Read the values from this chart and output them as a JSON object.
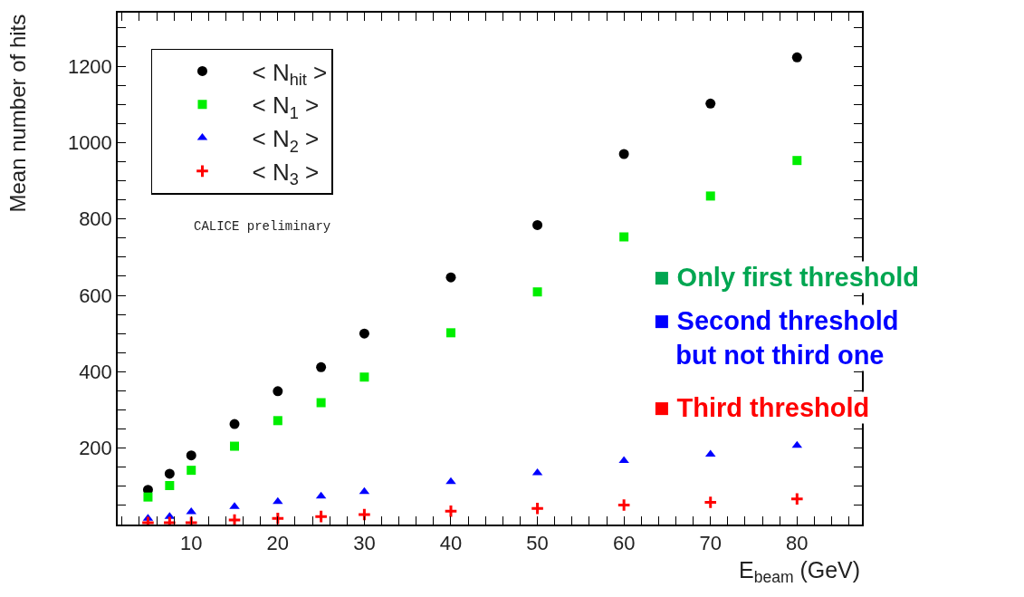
{
  "chart_data": {
    "type": "scatter",
    "xlabel": "E$_{beam}$ (GeV)",
    "ylabel": "Mean number of hits",
    "x": [
      5,
      7.5,
      10,
      15,
      20,
      25,
      30,
      40,
      50,
      60,
      70,
      80
    ],
    "series": [
      {
        "name": "< N$_{hit}$ >",
        "color": "#000000",
        "marker": "circle",
        "values": [
          91,
          133,
          181,
          263,
          349,
          412,
          500,
          647,
          784,
          970,
          1102,
          1223
        ]
      },
      {
        "name": "< N$_{1}$ >",
        "color": "#00ee00",
        "marker": "square",
        "values": [
          72,
          102,
          142,
          205,
          272,
          319,
          386,
          502,
          609,
          753,
          860,
          953
        ]
      },
      {
        "name": "< N$_{2}$ >",
        "color": "#0000ff",
        "marker": "triangle",
        "values": [
          16,
          21,
          33,
          47,
          60,
          74,
          86,
          112,
          135,
          167,
          184,
          207
        ]
      },
      {
        "name": "< N$_{3}$ >",
        "color": "#ff0000",
        "marker": "cross",
        "values": [
          5,
          5,
          5,
          12,
          16,
          21,
          26,
          35,
          42,
          51,
          58,
          67
        ]
      }
    ],
    "annotations": [
      "CALICE preliminary",
      "■ Only first threshold",
      "■ Second threshold\nbut not third one",
      "■ Third threshold"
    ],
    "xlim": [
      1.5,
      87.5
    ],
    "xticks": [
      {
        "value": 2,
        "label": null
      },
      {
        "value": 4,
        "label": null
      },
      {
        "value": 6,
        "label": null
      },
      {
        "value": 8,
        "label": null
      },
      10,
      {
        "value": 12,
        "label": null
      },
      {
        "value": 14,
        "label": null
      },
      {
        "value": 16,
        "label": null
      },
      {
        "value": 18,
        "label": null
      },
      20,
      {
        "value": 22,
        "label": null
      },
      {
        "value": 24,
        "label": null
      },
      {
        "value": 26,
        "label": null
      },
      {
        "value": 28,
        "label": null
      },
      30,
      {
        "value": 32,
        "label": null
      },
      {
        "value": 34,
        "label": null
      },
      {
        "value": 36,
        "label": null
      },
      {
        "value": 38,
        "label": null
      },
      40,
      {
        "value": 42,
        "label": null
      },
      {
        "value": 44,
        "label": null
      },
      {
        "value": 46,
        "label": null
      },
      {
        "value": 48,
        "label": null
      },
      50,
      {
        "value": 52,
        "label": null
      },
      {
        "value": 54,
        "label": null
      },
      {
        "value": 56,
        "label": null
      },
      {
        "value": 58,
        "label": null
      },
      60,
      {
        "value": 62,
        "label": null
      },
      {
        "value": 64,
        "label": null
      },
      {
        "value": 66,
        "label": null
      },
      {
        "value": 68,
        "label": null
      },
      70,
      {
        "value": 72,
        "label": null
      },
      {
        "value": 74,
        "label": null
      },
      {
        "value": 76,
        "label": null
      },
      {
        "value": 78,
        "label": null
      },
      80,
      {
        "value": 82,
        "label": null
      },
      {
        "value": 84,
        "label": null
      },
      {
        "value": 86,
        "label": null
      }
    ],
    "ylim": [
      0,
      1340
    ],
    "yticks": [
      {
        "value": 50,
        "label": null
      },
      {
        "value": 100,
        "label": null
      },
      {
        "value": 150,
        "label": null
      },
      200,
      {
        "value": 250,
        "label": null
      },
      {
        "value": 300,
        "label": null
      },
      {
        "value": 350,
        "label": null
      },
      400,
      {
        "value": 450,
        "label": null
      },
      {
        "value": 500,
        "label": null
      },
      {
        "value": 550,
        "label": null
      },
      600,
      {
        "value": 650,
        "label": null
      },
      {
        "value": 700,
        "label": null
      },
      {
        "value": 750,
        "label": null
      },
      800,
      {
        "value": 850,
        "label": null
      },
      {
        "value": 900,
        "label": null
      },
      {
        "value": 950,
        "label": null
      },
      1000,
      {
        "value": 1050,
        "label": null
      },
      {
        "value": 1100,
        "label": null
      },
      {
        "value": 1150,
        "label": null
      },
      1200,
      {
        "value": 1250,
        "label": null
      },
      {
        "value": 1300,
        "label": null
      }
    ],
    "legend": "top left"
  }
}
